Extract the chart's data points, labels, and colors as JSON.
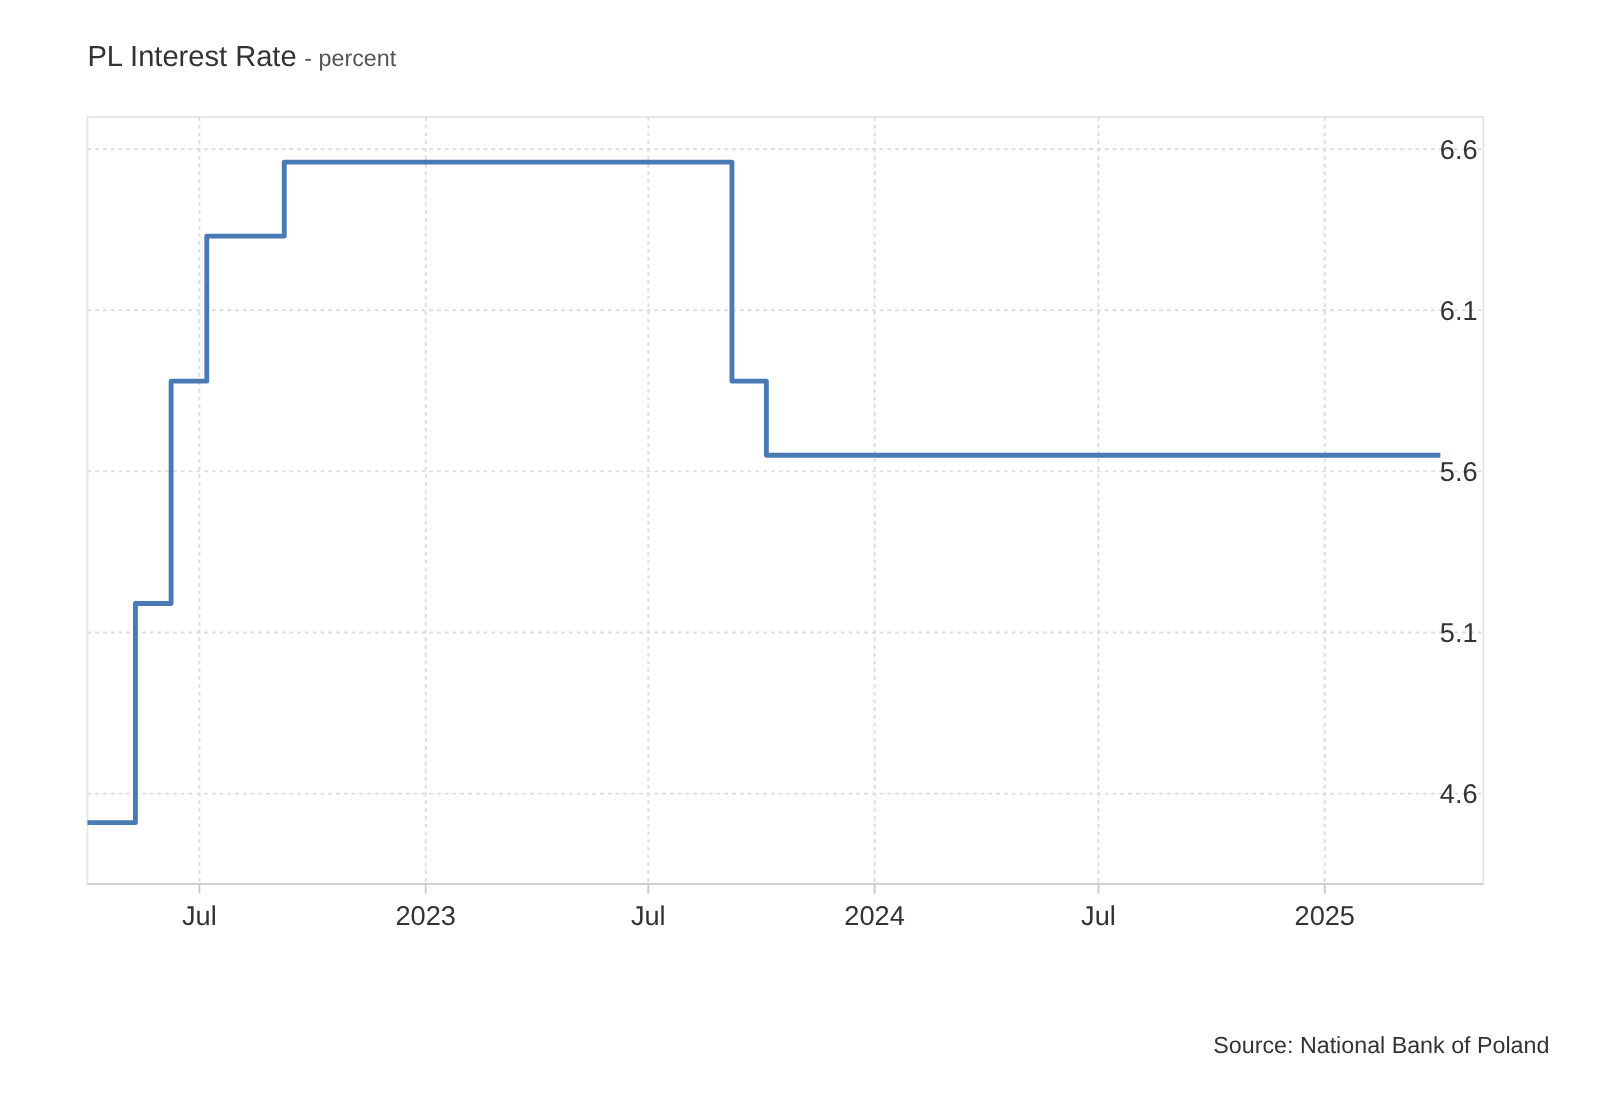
{
  "chart_data": {
    "type": "step",
    "title": "PL Interest Rate",
    "subtitle": "- percent",
    "x": [
      "2022-04-01",
      "2022-05-10",
      "2022-06-08",
      "2022-07-07",
      "2022-09-08",
      "2023-09-07",
      "2023-10-05",
      "2025-04-05"
    ],
    "series": [
      {
        "color": "#4a7ab4",
        "values": [
          4.51,
          5.19,
          5.88,
          6.33,
          6.56,
          5.88,
          5.65,
          5.65
        ]
      }
    ],
    "xlim": [
      "2022-04-01",
      "2025-05-10"
    ],
    "xticks": [
      {
        "value": "2022-07-01",
        "label": "Jul"
      },
      {
        "value": "2023-01-01",
        "label": "2023"
      },
      {
        "value": "2023-07-01",
        "label": "Jul"
      },
      {
        "value": "2024-01-01",
        "label": "2024"
      },
      {
        "value": "2024-07-01",
        "label": "Jul"
      },
      {
        "value": "2025-01-01",
        "label": "2025"
      }
    ],
    "ylim": [
      4.32,
      6.7
    ],
    "yticks": [
      4.6,
      5.1,
      5.6,
      6.1,
      6.6
    ],
    "grid": true,
    "line_style": "solid",
    "marker": "none",
    "annotations": [
      "Source: National Bank of Poland"
    ]
  }
}
